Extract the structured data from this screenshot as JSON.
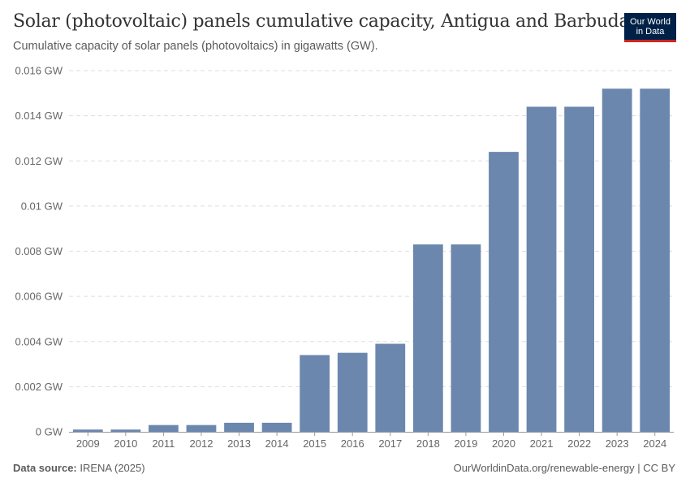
{
  "header": {
    "title": "Solar (photovoltaic) panels cumulative capacity, Antigua and Barbuda",
    "subtitle": "Cumulative capacity of solar panels (photovoltaics) in gigawatts (GW).",
    "logo_line1": "Our World",
    "logo_line2": "in Data"
  },
  "footer": {
    "source_label": "Data source:",
    "source_value": "IRENA (2025)",
    "credit": "OurWorldinData.org/renewable-energy | CC BY"
  },
  "colors": {
    "bar": "#6c87ae",
    "grid": "#dddddd",
    "axis": "#999999"
  },
  "chart_data": {
    "type": "bar",
    "title": "Solar (photovoltaic) panels cumulative capacity, Antigua and Barbuda",
    "xlabel": "",
    "ylabel": "",
    "categories": [
      "2009",
      "2010",
      "2011",
      "2012",
      "2013",
      "2014",
      "2015",
      "2016",
      "2017",
      "2018",
      "2019",
      "2020",
      "2021",
      "2022",
      "2023",
      "2024"
    ],
    "values": [
      0.0001,
      0.0001,
      0.0003,
      0.0003,
      0.0004,
      0.0004,
      0.0034,
      0.0035,
      0.0039,
      0.0083,
      0.0083,
      0.0124,
      0.0144,
      0.0144,
      0.0152,
      0.0152
    ],
    "unit": "GW",
    "ylim": [
      0,
      0.016
    ],
    "yticks": [
      0,
      0.002,
      0.004,
      0.006,
      0.008,
      0.01,
      0.012,
      0.014,
      0.016
    ],
    "ytick_labels": [
      "0 GW",
      "0.002 GW",
      "0.004 GW",
      "0.006 GW",
      "0.008 GW",
      "0.01 GW",
      "0.012 GW",
      "0.014 GW",
      "0.016 GW"
    ],
    "grid": true
  }
}
